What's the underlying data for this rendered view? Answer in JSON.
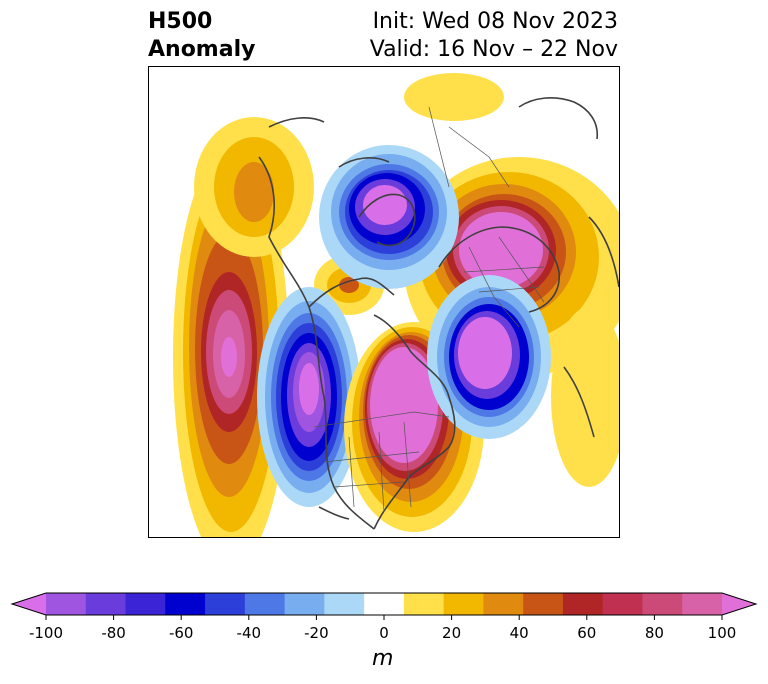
{
  "title": {
    "left_line1": "H500",
    "left_line2": "Anomaly",
    "right_line1": "Init: Wed 08 Nov 2023",
    "right_line2": "Valid: 16 Nov – 22 Nov"
  },
  "colorbar": {
    "unit": "m",
    "ticks": [
      "-100",
      "-80",
      "-60",
      "-40",
      "-20",
      "0",
      "20",
      "40",
      "60",
      "80",
      "100"
    ],
    "colors": [
      "#d96fe8",
      "#9f55df",
      "#6a3cdb",
      "#3b24d6",
      "#0000cf",
      "#2c3fd9",
      "#4e78e6",
      "#78aef0",
      "#acd8f7",
      "#ffffff",
      "#ffe04a",
      "#f2b800",
      "#e08a10",
      "#c85515",
      "#b02525",
      "#c03050",
      "#cc4a78",
      "#d862a8",
      "#e070d8"
    ]
  },
  "map_features": {
    "anomalies": [
      {
        "region": "north-pacific",
        "sign": "positive",
        "peak_m": 100
      },
      {
        "region": "western-north-america",
        "sign": "negative",
        "peak_m": -100
      },
      {
        "region": "eastern-north-america",
        "sign": "positive",
        "peak_m": 100
      },
      {
        "region": "north-atlantic",
        "sign": "negative",
        "peak_m": -100
      },
      {
        "region": "arctic-canada",
        "sign": "negative",
        "peak_m": -100
      },
      {
        "region": "siberia",
        "sign": "positive",
        "peak_m": 100
      },
      {
        "region": "alaska",
        "sign": "positive",
        "peak_m": 40
      }
    ]
  }
}
